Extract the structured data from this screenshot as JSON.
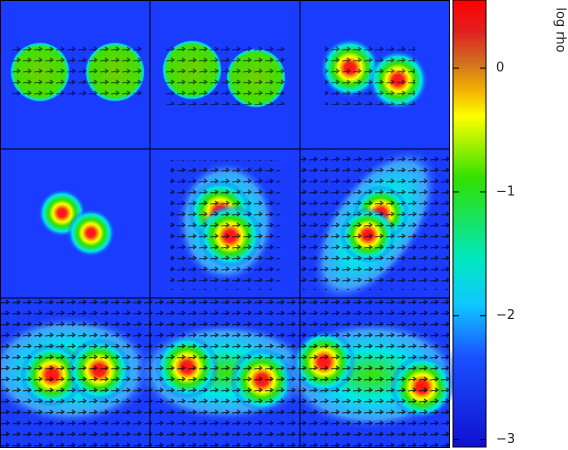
{
  "chart_data": {
    "type": "colorbar",
    "label": "log rho",
    "ylim": [
      -3.06,
      0.55
    ],
    "yticks": [
      0,
      {
        "value": -1,
        "label": "−1"
      },
      {
        "value": -2,
        "label": "−2"
      },
      {
        "value": -3,
        "label": "−3"
      }
    ]
  }
}
